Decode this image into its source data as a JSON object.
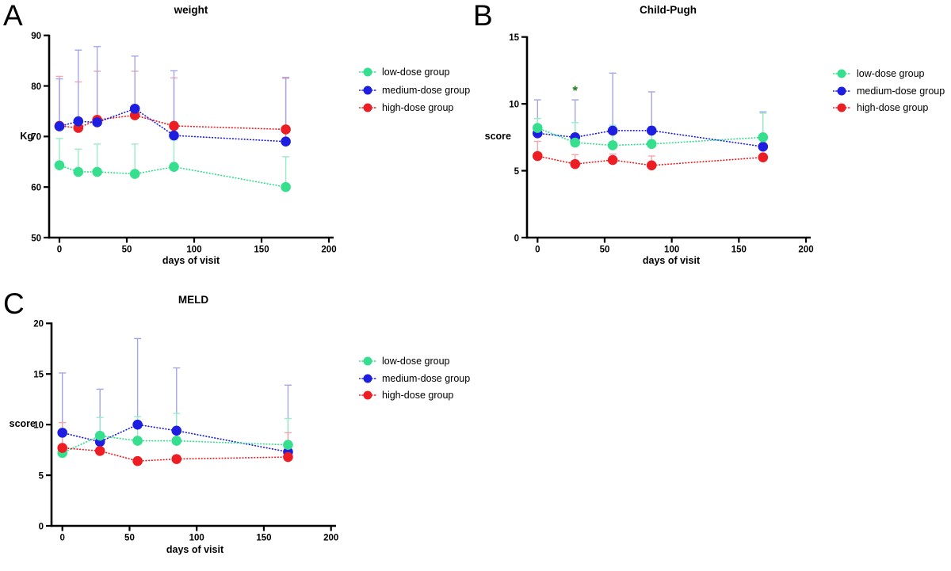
{
  "chart_data": [
    {
      "type": "line",
      "panel_label": "A",
      "title": "weight",
      "xlabel": "days of visit",
      "ylabel": "Kg",
      "xlim": [
        0,
        200
      ],
      "ylim": [
        50,
        90
      ],
      "xticks": [
        0,
        50,
        100,
        150,
        200
      ],
      "yticks": [
        50,
        60,
        70,
        80,
        90
      ],
      "grid": false,
      "legend_position": "right",
      "x": [
        0,
        14,
        28,
        56,
        85,
        168
      ],
      "series": [
        {
          "name": "low-dose group",
          "color": "#35DF8D",
          "light_color": "#98ECC6",
          "values": [
            64.3,
            63.0,
            63.0,
            62.6,
            64.0,
            60.0
          ],
          "err_up": [
            5.3,
            4.5,
            5.5,
            5.9,
            5.3,
            6.0
          ]
        },
        {
          "name": "medium-dose group",
          "color": "#1E1EE0",
          "light_color": "#A3A6E8",
          "values": [
            72.0,
            73.0,
            72.8,
            75.5,
            70.2,
            69.0
          ],
          "err_up": [
            9.4,
            14.1,
            15.0,
            10.4,
            12.8,
            12.7
          ]
        },
        {
          "name": "high-dose group",
          "color": "#EC1E24",
          "light_color": "#F4A6AC",
          "values": [
            72.1,
            71.7,
            73.3,
            74.2,
            72.1,
            71.4
          ],
          "err_up": [
            9.8,
            9.1,
            9.6,
            8.7,
            9.5,
            10.1
          ]
        }
      ],
      "annotations": []
    },
    {
      "type": "line",
      "panel_label": "B",
      "title": "Child-Pugh",
      "xlabel": "days of visit",
      "ylabel": "score",
      "xlim": [
        0,
        200
      ],
      "ylim": [
        0,
        15
      ],
      "xticks": [
        0,
        50,
        100,
        150,
        200
      ],
      "yticks": [
        0,
        5,
        10,
        15
      ],
      "grid": false,
      "legend_position": "right",
      "x": [
        0,
        28,
        56,
        85,
        168
      ],
      "series": [
        {
          "name": "low-dose group",
          "color": "#35DF8D",
          "light_color": "#98ECC6",
          "values": [
            8.2,
            7.1,
            6.9,
            7.0,
            7.5
          ],
          "err_up": [
            0.7,
            1.5,
            1.5,
            1.3,
            1.8
          ]
        },
        {
          "name": "medium-dose group",
          "color": "#1E1EE0",
          "light_color": "#A3A6E8",
          "values": [
            7.8,
            7.5,
            8.0,
            8.0,
            6.8
          ],
          "err_up": [
            2.5,
            2.8,
            4.3,
            2.9,
            2.6
          ]
        },
        {
          "name": "high-dose group",
          "color": "#EC1E24",
          "light_color": "#F4A6AC",
          "values": [
            6.1,
            5.5,
            5.8,
            5.4,
            6.0
          ],
          "err_up": [
            1.1,
            0.7,
            0.45,
            0.7,
            0
          ]
        }
      ],
      "annotations": [
        {
          "text": "*",
          "x": 28,
          "y": 11.0,
          "color": "#1D7A1D"
        }
      ]
    },
    {
      "type": "line",
      "panel_label": "C",
      "title": "MELD",
      "xlabel": "days of visit",
      "ylabel": "score",
      "xlim": [
        0,
        200
      ],
      "ylim": [
        0,
        20
      ],
      "xticks": [
        0,
        50,
        100,
        150,
        200
      ],
      "yticks": [
        0,
        5,
        10,
        15,
        20
      ],
      "grid": false,
      "legend_position": "right",
      "x": [
        0,
        28,
        56,
        85,
        168
      ],
      "series": [
        {
          "name": "low-dose group",
          "color": "#35DF8D",
          "light_color": "#98ECC6",
          "values": [
            7.2,
            8.9,
            8.4,
            8.4,
            8.0
          ],
          "err_up": [
            3.0,
            1.8,
            2.4,
            2.7,
            2.6
          ]
        },
        {
          "name": "medium-dose group",
          "color": "#1E1EE0",
          "light_color": "#A3A6E8",
          "values": [
            9.2,
            8.3,
            10.0,
            9.4,
            7.3
          ],
          "err_up": [
            5.9,
            5.2,
            8.5,
            6.2,
            6.6
          ]
        },
        {
          "name": "high-dose group",
          "color": "#EC1E24",
          "light_color": "#F4A6AC",
          "values": [
            7.7,
            7.4,
            6.4,
            6.6,
            6.8
          ],
          "err_up": [
            2.5,
            0,
            0,
            0,
            2.4
          ]
        }
      ],
      "annotations": []
    }
  ]
}
